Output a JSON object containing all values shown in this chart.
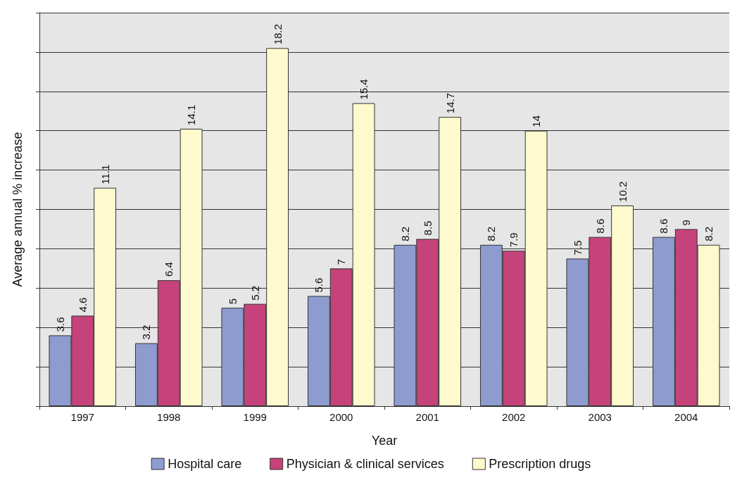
{
  "chart_data": {
    "type": "bar",
    "xlabel": "Year",
    "ylabel": "Average annual % increase",
    "categories": [
      "1997",
      "1998",
      "1999",
      "2000",
      "2001",
      "2002",
      "2003",
      "2004"
    ],
    "series": [
      {
        "name": "Hospital care",
        "color": "#8e9bcf",
        "values": [
          3.6,
          3.2,
          5,
          5.6,
          8.2,
          8.2,
          7.5,
          8.6
        ]
      },
      {
        "name": "Physician & clinical services",
        "color": "#c5437a",
        "values": [
          4.6,
          6.4,
          5.2,
          7,
          8.5,
          7.9,
          8.6,
          9
        ]
      },
      {
        "name": "Prescription drugs",
        "color": "#fffacd",
        "values": [
          11.1,
          14.1,
          18.2,
          15.4,
          14.7,
          14,
          10.2,
          8.2
        ]
      }
    ],
    "ylim": [
      0,
      20
    ],
    "yticks": [
      {
        "value": 0,
        "label": null
      },
      {
        "value": 2,
        "label": null
      },
      {
        "value": 4,
        "label": null
      },
      {
        "value": 6,
        "label": null
      },
      {
        "value": 8,
        "label": null
      },
      {
        "value": 10,
        "label": null
      },
      {
        "value": 12,
        "label": null
      },
      {
        "value": 14,
        "label": null
      },
      {
        "value": 16,
        "label": null
      },
      {
        "value": 18,
        "label": null
      },
      {
        "value": 20,
        "label": null
      }
    ],
    "tick_labels": "x",
    "grid": "y",
    "legend": "bottom",
    "data_labels": true
  }
}
